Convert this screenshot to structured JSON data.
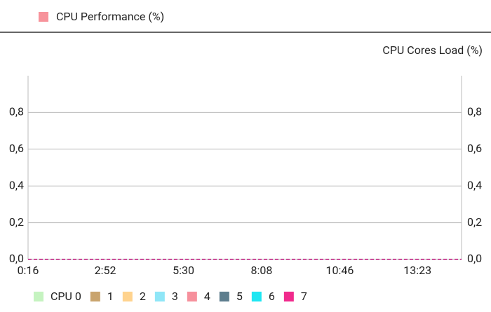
{
  "performance_legend": {
    "label": "CPU Performance (%)",
    "color": "#f7939b"
  },
  "chart_data": {
    "type": "line",
    "title": "CPU Cores Load (%)",
    "x": [
      16,
      892
    ],
    "xlim": [
      16,
      892
    ],
    "xticks": [
      {
        "value": 16,
        "label": "0:16"
      },
      {
        "value": 172,
        "label": "2:52"
      },
      {
        "value": 330,
        "label": "5:30"
      },
      {
        "value": 488,
        "label": "8:08"
      },
      {
        "value": 646,
        "label": "10:46"
      },
      {
        "value": 803,
        "label": "13:23"
      }
    ],
    "ylim": [
      0,
      1
    ],
    "yticks": [
      {
        "value": 0,
        "label": "0,0"
      },
      {
        "value": 0.2,
        "label": "0,2"
      },
      {
        "value": 0.4,
        "label": "0,4"
      },
      {
        "value": 0.6,
        "label": "0,6"
      },
      {
        "value": 0.8,
        "label": "0,8"
      }
    ],
    "grid": true,
    "series": [
      {
        "name": "CPU 0",
        "color": "#c5f3c0",
        "values": [
          0,
          0
        ]
      },
      {
        "name": "1",
        "color": "#c9a46e",
        "values": [
          0,
          0
        ]
      },
      {
        "name": "2",
        "color": "#ffd38e",
        "values": [
          0,
          0
        ]
      },
      {
        "name": "3",
        "color": "#8fe6f7",
        "values": [
          0,
          0
        ]
      },
      {
        "name": "4",
        "color": "#f6909c",
        "values": [
          0,
          0
        ]
      },
      {
        "name": "5",
        "color": "#5e7e8e",
        "values": [
          0,
          0
        ]
      },
      {
        "name": "6",
        "color": "#1ee6f2",
        "values": [
          0,
          0
        ]
      },
      {
        "name": "7",
        "color": "#f02a8c",
        "values": [
          0,
          0
        ]
      }
    ]
  }
}
